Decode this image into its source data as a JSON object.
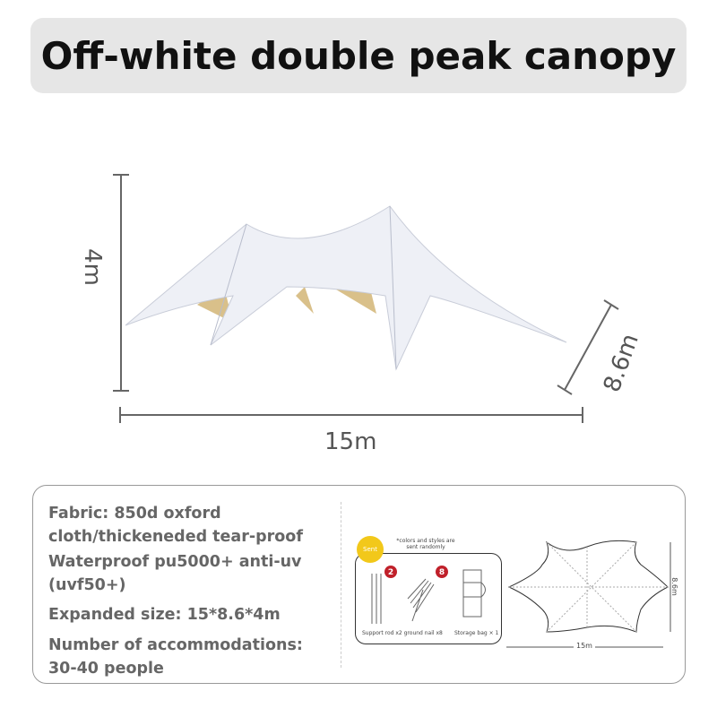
{
  "title": "Off-white double peak canopy",
  "dimensions": {
    "height": "4m",
    "width": "15m",
    "depth": "8.6m"
  },
  "features": [
    {
      "lines": [
        "Fabric: 850d oxford",
        "cloth/thickeneded tear-proof"
      ]
    },
    {
      "lines": [
        "Waterproof pu5000+ anti-uv",
        "(uvf50+)"
      ]
    },
    {
      "lines": [
        "Expanded size: 15*8.6*4m"
      ]
    },
    {
      "lines": [
        "Number of accommodations:",
        "30-40 people"
      ]
    }
  ],
  "accessories": {
    "sent_badge": "Sent",
    "note": "*colors and styles are sent randomly",
    "rod_count": "2",
    "nail_count": "8",
    "rods_label": "Support rod x2 ground nail x8",
    "bag_label": "Storage bag × 1"
  },
  "plan": {
    "width": "15m",
    "depth": "8.6m"
  }
}
